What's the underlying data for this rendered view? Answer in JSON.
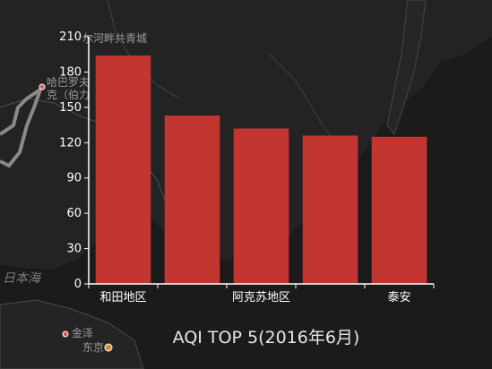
{
  "map": {
    "labels": [
      "尔河畔共青城",
      "哈巴罗夫",
      "克（伯力",
      "日本海",
      "金泽",
      "东京"
    ],
    "colors": {
      "background": "#1b1b1b",
      "land": "#232323",
      "border": "#555555",
      "coast": "#7a7a7a",
      "city_dot": "#e05555",
      "capital_dot": "#e08a3a"
    }
  },
  "chart_data": {
    "type": "bar",
    "title": "AQI TOP 5(2016年6月)",
    "categories": [
      "和田地区",
      "",
      "阿克苏地区",
      "",
      "泰安"
    ],
    "values": [
      194,
      143,
      132,
      126,
      125
    ],
    "y_ticks": [
      0,
      30,
      60,
      90,
      120,
      150,
      180,
      210
    ],
    "ylim": [
      0,
      210
    ],
    "grid": false,
    "legend": "none",
    "colors": {
      "bar": "#c23531",
      "axis": "#ffffff",
      "text": "#ffffff"
    }
  }
}
